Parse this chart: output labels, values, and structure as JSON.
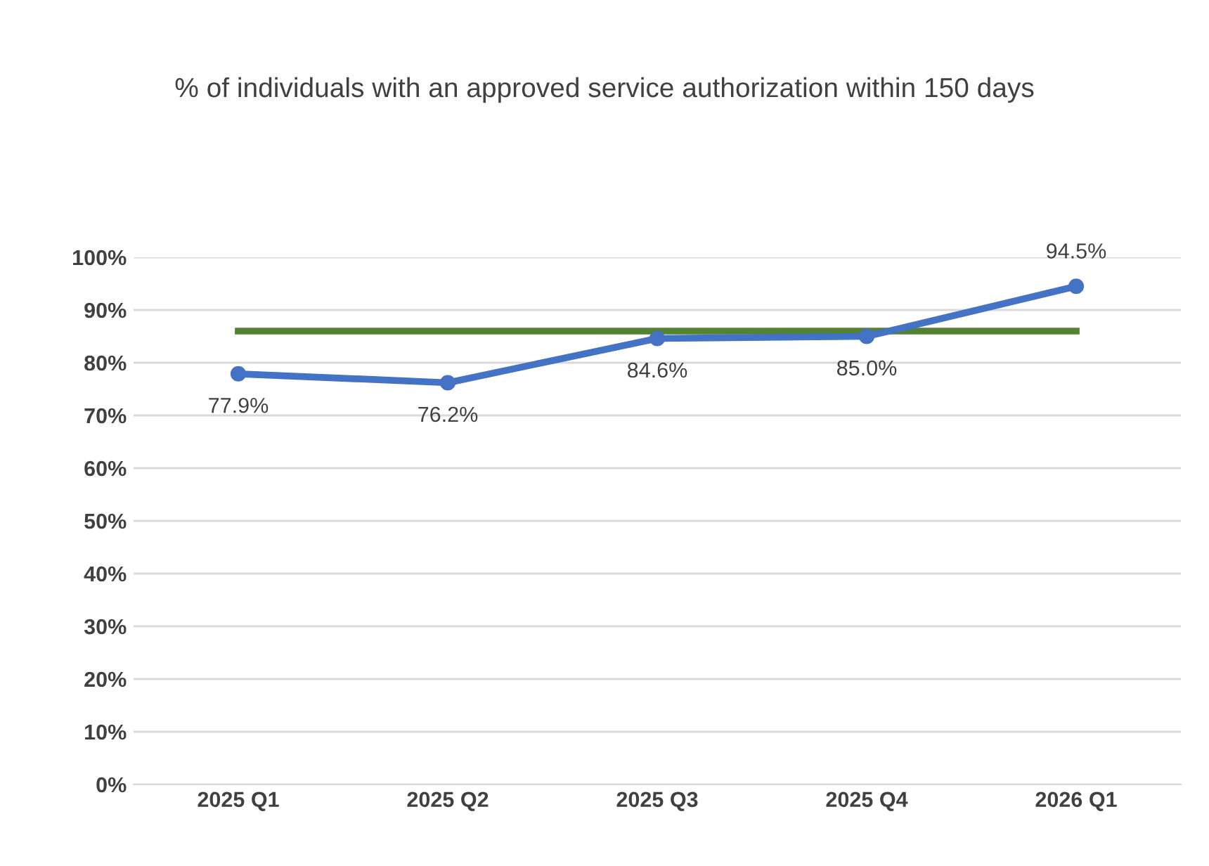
{
  "chart_data": {
    "type": "line",
    "title": "% of individuals with an approved service authorization within 150 days",
    "categories": [
      "2025 Q1",
      "2025 Q2",
      "2025 Q3",
      "2025 Q4",
      "2026 Q1"
    ],
    "series": [
      {
        "color": "#4472c4",
        "values": [
          77.9,
          76.2,
          84.6,
          85.0,
          94.5
        ],
        "marker": "circle",
        "data_labels": true,
        "value_labels": [
          "77.9%",
          "76.2%",
          "84.6%",
          "85.0%",
          "94.5%"
        ]
      },
      {
        "color": "#548235",
        "values": [
          86,
          86,
          86,
          86,
          86
        ],
        "marker": "none"
      }
    ],
    "ylim": [
      0,
      100
    ],
    "yticks": [
      {
        "value": 0,
        "label": "0%"
      },
      {
        "value": 10,
        "label": "10%"
      },
      {
        "value": 20,
        "label": "20%"
      },
      {
        "value": 30,
        "label": "30%"
      },
      {
        "value": 40,
        "label": "40%"
      },
      {
        "value": 50,
        "label": "50%"
      },
      {
        "value": 60,
        "label": "60%"
      },
      {
        "value": 70,
        "label": "70%"
      },
      {
        "value": 80,
        "label": "80%"
      },
      {
        "value": 90,
        "label": "90%"
      },
      {
        "value": 100,
        "label": "100%"
      }
    ],
    "grid": "y",
    "line_style": "solid"
  }
}
